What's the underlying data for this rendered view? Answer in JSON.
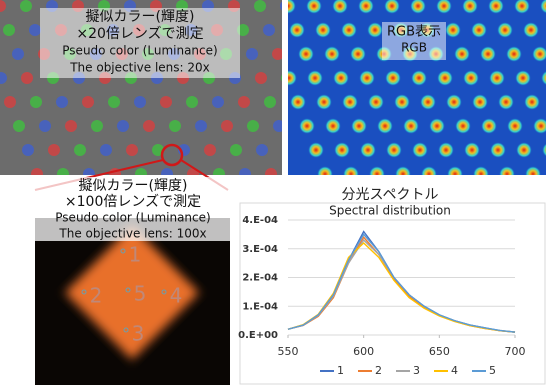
{
  "panels": {
    "top_left": {
      "lines": [
        "擬似カラー(輝度)",
        "×20倍レンズで測定",
        "Pseudo color (Luminance)",
        "The objective lens: 20x"
      ]
    },
    "top_right": {
      "lines": [
        "RGB表示",
        "RGB"
      ]
    },
    "bottom_left": {
      "lines": [
        "擬似カラー(輝度)",
        "×100倍レンズで測定",
        "Pseudo color (Luminance)",
        "The objective lens: 100x"
      ],
      "points": [
        "1",
        "2",
        "5",
        "4",
        "3"
      ]
    }
  },
  "chart_data": {
    "type": "line",
    "title": "分光スペクトル",
    "subtitle": "Spectral distribution",
    "x": [
      550,
      560,
      570,
      580,
      590,
      600,
      610,
      620,
      630,
      640,
      650,
      660,
      670,
      680,
      690,
      700
    ],
    "series": [
      {
        "name": "1",
        "color": "#4472c4",
        "values": [
          2e-05,
          3.5e-05,
          7e-05,
          0.00014,
          0.00026,
          0.00036,
          0.00029,
          0.0002,
          0.00014,
          0.0001,
          7e-05,
          5e-05,
          3.5e-05,
          2.5e-05,
          1.5e-05,
          1e-05
        ]
      },
      {
        "name": "2",
        "color": "#ed7d31",
        "values": [
          2e-05,
          3.3e-05,
          6.5e-05,
          0.00013,
          0.00025,
          0.00034,
          0.00028,
          0.000195,
          0.000135,
          9.5e-05,
          6.8e-05,
          4.8e-05,
          3.3e-05,
          2.3e-05,
          1.5e-05,
          1e-05
        ]
      },
      {
        "name": "3",
        "color": "#a5a5a5",
        "values": [
          2e-05,
          3.4e-05,
          6.8e-05,
          0.000135,
          0.00025,
          0.00033,
          0.00028,
          0.0002,
          0.00014,
          0.0001,
          7e-05,
          5e-05,
          3.5e-05,
          2.4e-05,
          1.6e-05,
          1e-05
        ]
      },
      {
        "name": "4",
        "color": "#ffc000",
        "values": [
          2e-05,
          3.6e-05,
          7.2e-05,
          0.000145,
          0.00027,
          0.00032,
          0.00027,
          0.00019,
          0.00013,
          9.3e-05,
          6.6e-05,
          4.7e-05,
          3.3e-05,
          2.3e-05,
          1.5e-05,
          1e-05
        ]
      },
      {
        "name": "5",
        "color": "#5b9bd5",
        "values": [
          2e-05,
          3.4e-05,
          7e-05,
          0.00014,
          0.00026,
          0.00035,
          0.00029,
          0.0002,
          0.00014,
          0.0001,
          7e-05,
          5e-05,
          3.5e-05,
          2.5e-05,
          1.6e-05,
          1e-05
        ]
      }
    ],
    "xlim": [
      550,
      700
    ],
    "xticks": [
      550,
      600,
      650,
      700
    ],
    "ylim": [
      0,
      0.0004
    ],
    "yticks": [
      {
        "value": 0,
        "label": "0.E+00"
      },
      {
        "value": 0.0001,
        "label": "1.E-04"
      },
      {
        "value": 0.0002,
        "label": "2.E-04"
      },
      {
        "value": 0.0003,
        "label": "3.E-04"
      },
      {
        "value": 0.0004,
        "label": "4.E-04"
      }
    ],
    "grid": true
  }
}
